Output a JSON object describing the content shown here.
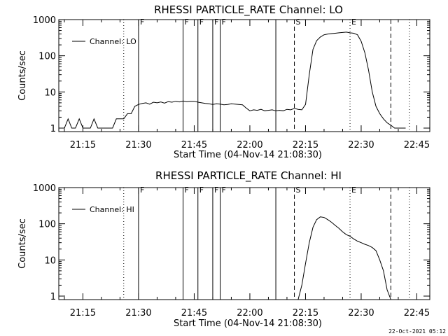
{
  "chart_data": [
    {
      "type": "line",
      "title": "RHESSI PARTICLE_RATE Channel: LO",
      "xlabel": "Start Time (04-Nov-14 21:08:30)",
      "ylabel": "Counts/sec",
      "yscale": "log",
      "ylim": [
        0.8,
        1000
      ],
      "xlim": [
        "21:08:30",
        "22:48:30"
      ],
      "x_ticks": [
        "21:15",
        "21:30",
        "21:45",
        "22:00",
        "22:15",
        "22:30",
        "22:45"
      ],
      "y_ticks": [
        "1",
        "10",
        "100",
        "1000"
      ],
      "legend": {
        "label": "Channel: LO",
        "placement": "top-left"
      },
      "series": [
        {
          "name": "Channel: LO",
          "x": [
            "21:08:30",
            "21:10:00",
            "21:11:00",
            "21:12:00",
            "21:13:00",
            "21:14:00",
            "21:15:00",
            "21:17:00",
            "21:18:00",
            "21:19:00",
            "21:20:00",
            "21:21:00",
            "21:22:00",
            "21:23:00",
            "21:24:00",
            "21:25:00",
            "21:26:00",
            "21:27:00",
            "21:28:00",
            "21:29:00",
            "21:30:00",
            "21:31:00",
            "21:32:00",
            "21:33:00",
            "21:34:00",
            "21:35:00",
            "21:36:00",
            "21:37:00",
            "21:38:00",
            "21:39:00",
            "21:40:00",
            "21:41:00",
            "21:42:00",
            "21:43:00",
            "21:44:00",
            "21:45:00",
            "21:46:00",
            "21:47:00",
            "21:48:00",
            "21:49:00",
            "21:50:00",
            "21:51:00",
            "21:52:00",
            "21:53:00",
            "21:54:00",
            "21:55:00",
            "21:56:00",
            "21:57:00",
            "21:58:00",
            "21:59:00",
            "22:00:00",
            "22:01:00",
            "22:02:00",
            "22:03:00",
            "22:04:00",
            "22:05:00",
            "22:06:00",
            "22:07:00",
            "22:08:00",
            "22:09:00",
            "22:10:00",
            "22:11:00",
            "22:12:00",
            "22:13:00",
            "22:14:00",
            "22:15:00",
            "22:16:00",
            "22:17:00",
            "22:18:00",
            "22:19:00",
            "22:20:00",
            "22:21:00",
            "22:22:00",
            "22:23:00",
            "22:24:00",
            "22:25:00",
            "22:26:00",
            "22:27:00",
            "22:28:00",
            "22:29:00",
            "22:30:00",
            "22:31:00",
            "22:32:00",
            "22:33:00",
            "22:34:00",
            "22:35:00",
            "22:36:00",
            "22:37:00",
            "22:38:00",
            "22:39:00",
            "22:40:00",
            "22:41:00",
            "22:42:00"
          ],
          "y": [
            1,
            1,
            1.8,
            1,
            1,
            1.8,
            1,
            1,
            1.8,
            1,
            1,
            1,
            1,
            1,
            1.8,
            1.8,
            1.8,
            2.5,
            2.5,
            4,
            4.5,
            4.8,
            5,
            4.6,
            5.2,
            5,
            5.3,
            4.9,
            5.4,
            5.2,
            5.5,
            5.3,
            5.6,
            5.4,
            5.5,
            5.5,
            5.2,
            5,
            4.8,
            4.7,
            4.5,
            4.7,
            4.6,
            4.4,
            4.5,
            4.7,
            4.6,
            4.5,
            4.4,
            3.6,
            3,
            3.2,
            3.1,
            3.3,
            3,
            3.1,
            3.2,
            3,
            3.1,
            3,
            3.3,
            3.2,
            3.5,
            3.3,
            3.2,
            4.5,
            30,
            150,
            260,
            330,
            380,
            400,
            410,
            420,
            430,
            440,
            450,
            430,
            420,
            380,
            250,
            120,
            40,
            10,
            4,
            2.5,
            1.8,
            1.4,
            1.2,
            1,
            1,
            1,
            1
          ]
        }
      ],
      "markers": [
        {
          "time": "21:26:00",
          "style": "dotted",
          "label": ""
        },
        {
          "time": "21:30:00",
          "style": "solid",
          "label": "F"
        },
        {
          "time": "21:42:00",
          "style": "solid",
          "label": "F"
        },
        {
          "time": "21:46:00",
          "style": "solid",
          "label": "F"
        },
        {
          "time": "21:50:00",
          "style": "solid",
          "label": "F"
        },
        {
          "time": "21:52:00",
          "style": "solid",
          "label": "F"
        },
        {
          "time": "22:07:00",
          "style": "solid",
          "label": ""
        },
        {
          "time": "22:12:00",
          "style": "dashed",
          "label": "S"
        },
        {
          "time": "22:27:00",
          "style": "dotted",
          "label": "E"
        },
        {
          "time": "22:38:00",
          "style": "dashed",
          "label": ""
        },
        {
          "time": "22:43:00",
          "style": "dotted",
          "label": ""
        }
      ]
    },
    {
      "type": "line",
      "title": "RHESSI PARTICLE_RATE Channel: HI",
      "xlabel": "Start Time (04-Nov-14 21:08:30)",
      "ylabel": "Counts/sec",
      "yscale": "log",
      "ylim": [
        0.8,
        1000
      ],
      "xlim": [
        "21:08:30",
        "22:48:30"
      ],
      "x_ticks": [
        "21:15",
        "21:30",
        "21:45",
        "22:00",
        "22:15",
        "22:30",
        "22:45"
      ],
      "y_ticks": [
        "1",
        "10",
        "100",
        "1000"
      ],
      "legend": {
        "label": "Channel: HI",
        "placement": "top-left"
      },
      "series": [
        {
          "name": "Channel: HI",
          "x": [
            "22:13:00",
            "22:14:00",
            "22:15:00",
            "22:16:00",
            "22:17:00",
            "22:18:00",
            "22:19:00",
            "22:20:00",
            "22:21:00",
            "22:22:00",
            "22:23:00",
            "22:24:00",
            "22:25:00",
            "22:26:00",
            "22:27:00",
            "22:28:00",
            "22:29:00",
            "22:30:00",
            "22:31:00",
            "22:32:00",
            "22:33:00",
            "22:34:00",
            "22:35:00",
            "22:36:00",
            "22:37:00",
            "22:38:00"
          ],
          "y": [
            0.8,
            2,
            8,
            30,
            80,
            130,
            155,
            150,
            130,
            110,
            90,
            75,
            60,
            50,
            45,
            38,
            33,
            30,
            27,
            25,
            22,
            18,
            10,
            5,
            1.5,
            0.8
          ]
        }
      ],
      "markers": [
        {
          "time": "21:26:00",
          "style": "dotted",
          "label": ""
        },
        {
          "time": "21:30:00",
          "style": "solid",
          "label": "F"
        },
        {
          "time": "21:42:00",
          "style": "solid",
          "label": "F"
        },
        {
          "time": "21:46:00",
          "style": "solid",
          "label": "F"
        },
        {
          "time": "21:50:00",
          "style": "solid",
          "label": "F"
        },
        {
          "time": "21:52:00",
          "style": "solid",
          "label": "F"
        },
        {
          "time": "22:07:00",
          "style": "solid",
          "label": ""
        },
        {
          "time": "22:12:00",
          "style": "dashed",
          "label": "S"
        },
        {
          "time": "22:27:00",
          "style": "dotted",
          "label": "E"
        },
        {
          "time": "22:38:00",
          "style": "dashed",
          "label": ""
        },
        {
          "time": "22:43:00",
          "style": "dotted",
          "label": ""
        }
      ]
    }
  ],
  "footer": {
    "timestamp": "22-Oct-2021 05:12"
  }
}
